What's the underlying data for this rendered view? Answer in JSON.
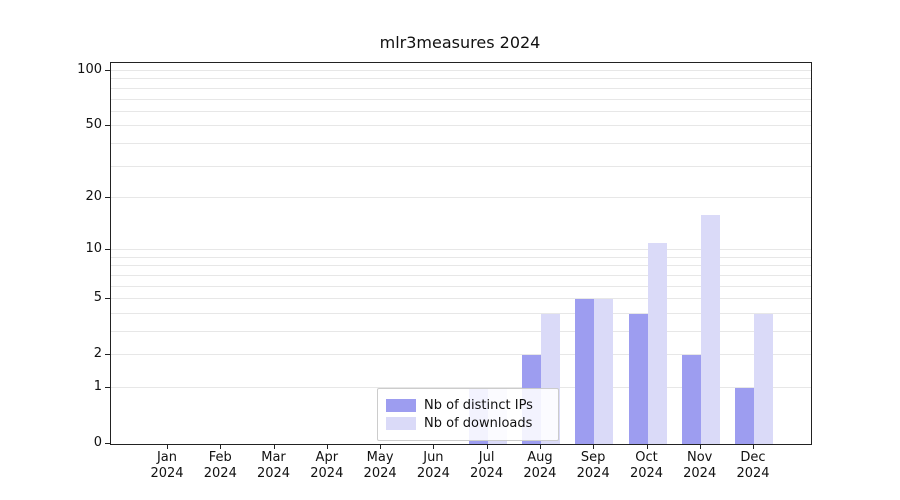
{
  "chart_data": {
    "type": "bar",
    "title": "mlr3measures 2024",
    "scale": "log1p",
    "grid": true,
    "legend_position": "bottom-center-inside",
    "ylim": [
      0,
      110.5
    ],
    "yticks": [
      0,
      1,
      2,
      5,
      10,
      20,
      50,
      100
    ],
    "grid_values": [
      1,
      2,
      3,
      4,
      5,
      6,
      7,
      8,
      9,
      10,
      20,
      30,
      40,
      50,
      60,
      70,
      80,
      90,
      100
    ],
    "categories": [
      "Jan",
      "Feb",
      "Mar",
      "Apr",
      "May",
      "Jun",
      "Jul",
      "Aug",
      "Sep",
      "Oct",
      "Nov",
      "Dec"
    ],
    "year": "2024",
    "series": [
      {
        "name": "Nb of distinct IPs",
        "color": "#9d9df0",
        "values": [
          0,
          0,
          0,
          0,
          0,
          0,
          1,
          2,
          5,
          4,
          2,
          1
        ]
      },
      {
        "name": "Nb of downloads",
        "color": "#dadaf8",
        "values": [
          0,
          0,
          0,
          0,
          0,
          0,
          1,
          4,
          5,
          11,
          16,
          4
        ]
      }
    ]
  },
  "colors": {
    "axis": "#222222",
    "grid": "#e7e7e7",
    "background": "#ffffff",
    "legend_border": "#cccccc"
  }
}
